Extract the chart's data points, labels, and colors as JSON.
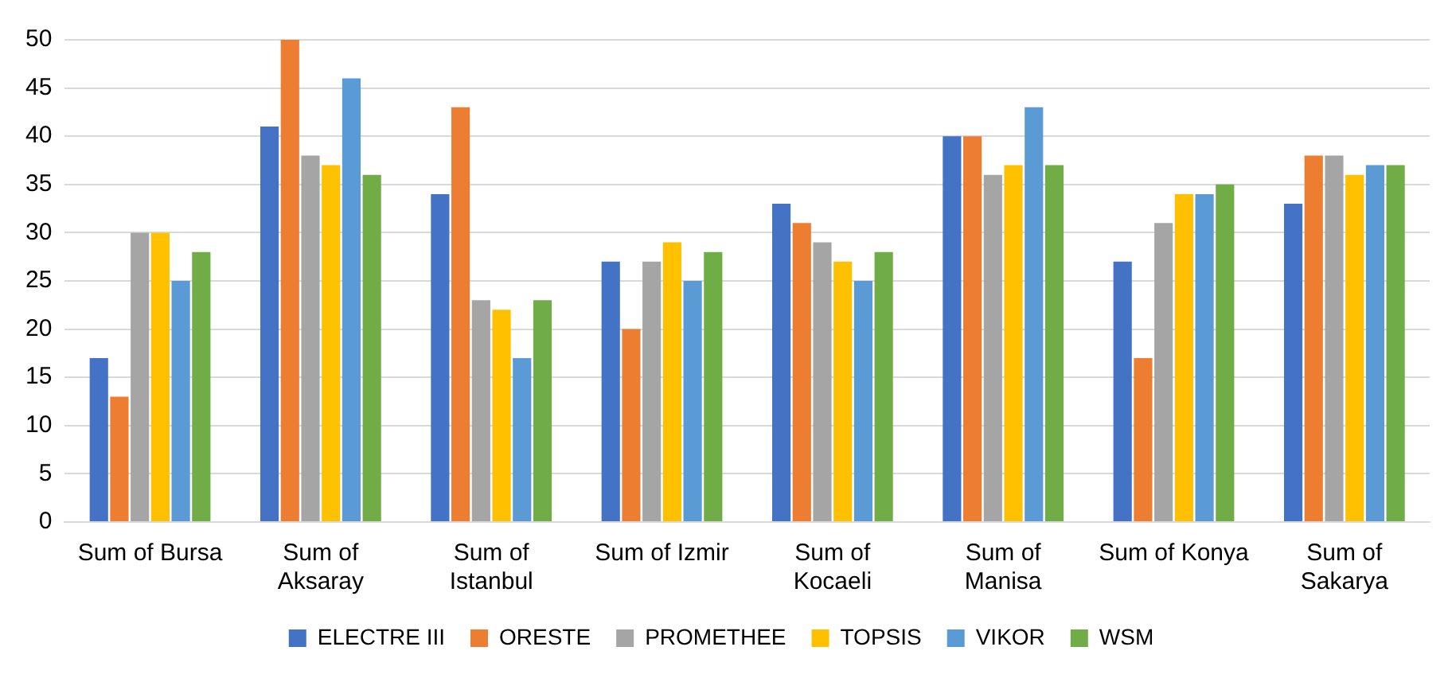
{
  "chart_data": {
    "type": "bar",
    "categories": [
      "Sum of Bursa",
      "Sum of Aksaray",
      "Sum of Istanbul",
      "Sum of Izmir",
      "Sum of Kocaeli",
      "Sum of Manisa",
      "Sum of Konya",
      "Sum of Sakarya"
    ],
    "series": [
      {
        "name": "ELECTRE III",
        "color": "#4472c4",
        "values": [
          17,
          41,
          34,
          27,
          33,
          40,
          27,
          33
        ]
      },
      {
        "name": "ORESTE",
        "color": "#ed7d31",
        "values": [
          13,
          50,
          43,
          20,
          31,
          40,
          17,
          38
        ]
      },
      {
        "name": "PROMETHEE",
        "color": "#a5a5a5",
        "values": [
          30,
          38,
          23,
          27,
          29,
          36,
          31,
          38
        ]
      },
      {
        "name": "TOPSIS",
        "color": "#ffc000",
        "values": [
          30,
          37,
          22,
          29,
          27,
          37,
          34,
          36
        ]
      },
      {
        "name": "VIKOR",
        "color": "#5b9bd5",
        "values": [
          25,
          46,
          17,
          25,
          25,
          43,
          34,
          37
        ]
      },
      {
        "name": "WSM",
        "color": "#70ad47",
        "values": [
          28,
          36,
          23,
          28,
          28,
          37,
          35,
          37
        ]
      }
    ],
    "ylim": [
      0,
      50
    ],
    "yticks": [
      0,
      5,
      10,
      15,
      20,
      25,
      30,
      35,
      40,
      45,
      50
    ],
    "grid": "y",
    "legend": "bottom"
  }
}
